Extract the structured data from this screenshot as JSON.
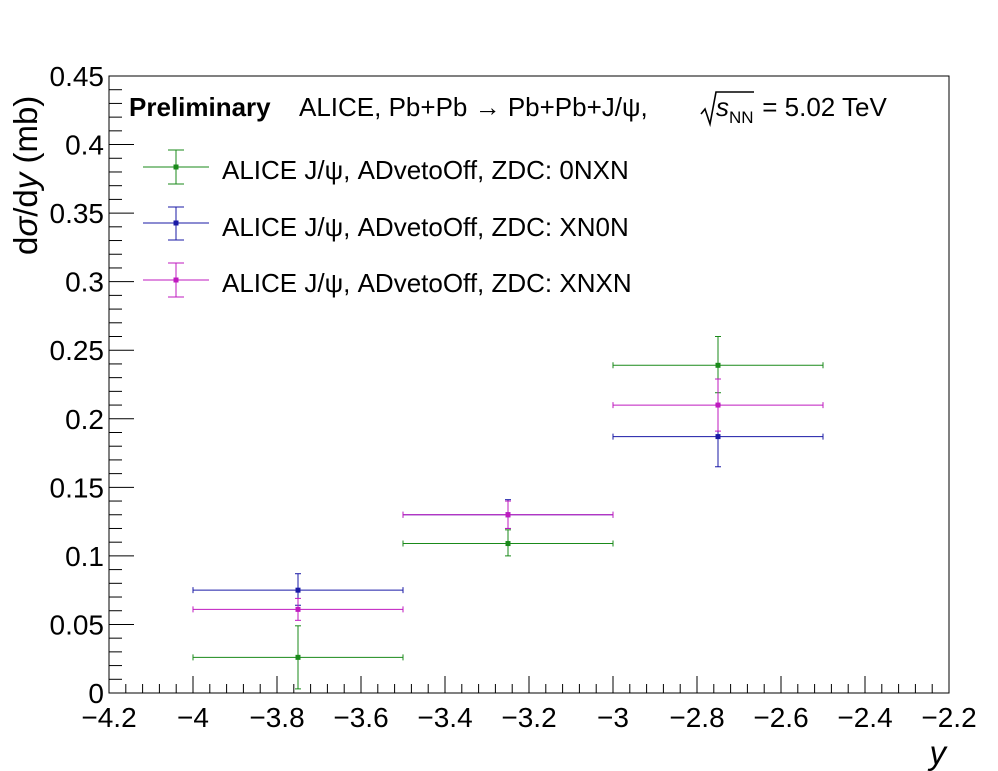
{
  "chart_data": {
    "type": "scatter",
    "header": {
      "preliminary": "Preliminary",
      "experiment": "ALICE, Pb+Pb → Pb+Pb+J/ψ, ",
      "sqrt_symbol": "√",
      "s_symbol": "s",
      "nn_subscript": "NN",
      "energy": " = 5.02 TeV"
    },
    "xlabel": "y",
    "ylabel_prefix": "d",
    "ylabel_sigma": "σ",
    "ylabel_mid": "/d",
    "ylabel_y": "y",
    "ylabel_unit": " (mb)",
    "xlim": [
      -4.2,
      -2.2
    ],
    "ylim": [
      0,
      0.45
    ],
    "x_ticks": [
      -4.2,
      -4.0,
      -3.8,
      -3.6,
      -3.4,
      -3.2,
      -3.0,
      -2.8,
      -2.6,
      -2.4,
      -2.2
    ],
    "x_tick_labels": [
      "−4.2",
      "−4",
      "−3.8",
      "−3.6",
      "−3.4",
      "−3.2",
      "−3",
      "−2.8",
      "−2.6",
      "−2.4",
      "−2.2"
    ],
    "y_ticks": [
      0,
      0.05,
      0.1,
      0.15,
      0.2,
      0.25,
      0.3,
      0.35,
      0.4,
      0.45
    ],
    "y_tick_labels": [
      "0",
      "0.05",
      "0.1",
      "0.15",
      "0.2",
      "0.25",
      "0.3",
      "0.35",
      "0.4",
      "0.45"
    ],
    "legend_position": "top-left",
    "grid": false,
    "series": [
      {
        "name": "ALICE J/ψ, ADvetoOff, ZDC: 0NXN",
        "color": "#1a8a1a",
        "points": [
          {
            "x": -3.75,
            "y": 0.026,
            "xerr": 0.25,
            "yerr_low": 0.023,
            "yerr_high": 0.023
          },
          {
            "x": -3.25,
            "y": 0.109,
            "xerr": 0.25,
            "yerr_low": 0.009,
            "yerr_high": 0.01
          },
          {
            "x": -2.75,
            "y": 0.239,
            "xerr": 0.25,
            "yerr_low": 0.02,
            "yerr_high": 0.021
          }
        ]
      },
      {
        "name": "ALICE J/ψ, ADvetoOff, ZDC: XN0N",
        "color": "#1a1aa6",
        "points": [
          {
            "x": -3.75,
            "y": 0.075,
            "xerr": 0.25,
            "yerr_low": 0.011,
            "yerr_high": 0.012
          },
          {
            "x": -3.25,
            "y": 0.13,
            "xerr": 0.25,
            "yerr_low": 0.01,
            "yerr_high": 0.011
          },
          {
            "x": -2.75,
            "y": 0.187,
            "xerr": 0.25,
            "yerr_low": 0.022,
            "yerr_high": 0.023
          }
        ]
      },
      {
        "name": "ALICE J/ψ, ADvetoOff, ZDC: XNXN",
        "color": "#bf1abf",
        "points": [
          {
            "x": -3.75,
            "y": 0.061,
            "xerr": 0.25,
            "yerr_low": 0.008,
            "yerr_high": 0.008
          },
          {
            "x": -3.25,
            "y": 0.13,
            "xerr": 0.25,
            "yerr_low": 0.01,
            "yerr_high": 0.01
          },
          {
            "x": -2.75,
            "y": 0.21,
            "xerr": 0.25,
            "yerr_low": 0.019,
            "yerr_high": 0.019
          }
        ]
      }
    ]
  }
}
